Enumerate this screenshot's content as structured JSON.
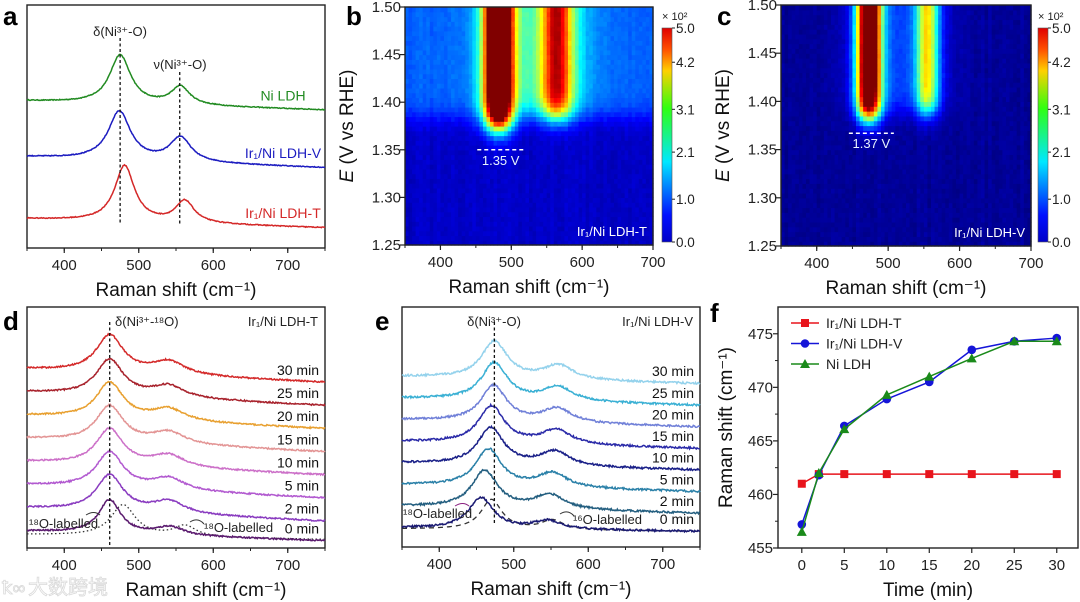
{
  "panel_letters": {
    "a": "a",
    "b": "b",
    "c": "c",
    "d": "d",
    "e": "e",
    "f": "f"
  },
  "watermark": "大数跨境",
  "chart_data": [
    {
      "id": "a",
      "type": "line",
      "xlabel": "Raman shift (cm⁻¹)",
      "ylabel": "",
      "xlim": [
        350,
        750
      ],
      "ylim": [
        0,
        10
      ],
      "xticks": [
        400,
        500,
        600,
        700
      ],
      "annotations": {
        "delta": "δ(Ni³⁺-O)",
        "nu": "ν(Ni³⁺-O)"
      },
      "marker_lines": [
        475,
        555
      ],
      "series": [
        {
          "name": "Ni LDH",
          "color": "#228b22",
          "offset": 6.05,
          "tilt": -0.37,
          "peaks": [
            [
              475,
              2.0,
              17
            ],
            [
              556,
              0.75,
              15
            ]
          ]
        },
        {
          "name": "Ir₁/Ni LDH-V",
          "color": "#1c1cc0",
          "offset": 3.75,
          "tilt": -0.45,
          "peaks": [
            [
              474,
              2.0,
              18
            ],
            [
              556,
              1.0,
              17
            ]
          ]
        },
        {
          "name": "Ir₁/Ni LDH-T",
          "color": "#d42828",
          "offset": 1.2,
          "tilt": -0.37,
          "peaks": [
            [
              481,
              2.3,
              16
            ],
            [
              562,
              0.9,
              15
            ]
          ]
        }
      ]
    },
    {
      "id": "b",
      "type": "heatmap",
      "xlabel": "Raman shift (cm⁻¹)",
      "ylabel_var": "E",
      "ylabel_unit": " (V vs RHE)",
      "xlim": [
        350,
        700
      ],
      "ylim": [
        1.25,
        1.5
      ],
      "xticks": [
        400,
        500,
        600,
        700
      ],
      "yticks": [
        "1.25",
        "1.30",
        "1.35",
        "1.40",
        "1.45",
        "1.50"
      ],
      "colorbar": {
        "multiplier": "× 10²",
        "range": [
          0,
          5
        ],
        "ticks": [
          "0.0",
          "1.0",
          "2.1",
          "3.1",
          "4.2",
          "5.0"
        ],
        "colormap": "jet"
      },
      "sample": "Ir₁/Ni LDH-T",
      "onset": {
        "label": "1.35 V",
        "E": 1.35,
        "x_from": 452,
        "x_to": 518
      },
      "model": {
        "background": [
          0.35,
          0.75,
          1.385
        ],
        "peaks": [
          [
            482,
            20,
            6.0,
            1.375
          ],
          [
            565,
            22,
            2.9,
            1.385
          ],
          [
            535,
            70,
            1.0,
            1.39
          ]
        ]
      }
    },
    {
      "id": "c",
      "type": "heatmap",
      "xlabel": "Raman shift (cm⁻¹)",
      "ylabel_var": "E",
      "ylabel_unit": " (V vs RHE)",
      "xlim": [
        350,
        700
      ],
      "ylim": [
        1.25,
        1.5
      ],
      "xticks": [
        400,
        500,
        600,
        700
      ],
      "yticks": [
        "1.25",
        "1.30",
        "1.35",
        "1.40",
        "1.45",
        "1.50"
      ],
      "colorbar": {
        "multiplier": "× 10²",
        "range": [
          0,
          5
        ],
        "ticks": [
          "0.0",
          "1.0",
          "2.1",
          "3.1",
          "4.2",
          "5.0"
        ],
        "colormap": "jet"
      },
      "sample": "Ir₁/Ni LDH-V",
      "onset": {
        "label": "1.37 V",
        "E": 1.367,
        "x_from": 445,
        "x_to": 508
      },
      "model": {
        "background": [
          0.12,
          0.0,
          1.4
        ],
        "peaks": [
          [
            473,
            17,
            6.0,
            1.385
          ],
          [
            555,
            16,
            2.7,
            1.39
          ],
          [
            515,
            60,
            0.8,
            1.39
          ]
        ]
      }
    },
    {
      "id": "d",
      "type": "line",
      "xlabel": "Raman shift (cm⁻¹)",
      "xlim": [
        350,
        750
      ],
      "ylim": [
        0,
        10
      ],
      "xticks": [
        400,
        500,
        600,
        700
      ],
      "title_annotation": "δ(Ni³⁺-¹⁸O)",
      "sample": "Ir₁/Ni LDH-T",
      "marker_lines": [
        461
      ],
      "ref_labels": [
        "¹⁸O-labelled",
        "¹⁸O-labelled"
      ],
      "reference": {
        "offset": 0.55,
        "tilt": -0.2,
        "peaks": [
          [
            479,
            1.3,
            20
          ],
          [
            562,
            0.45,
            18
          ]
        ],
        "dash": "dotted"
      },
      "series": [
        {
          "name": "0 min",
          "color": "#5a1a6e",
          "offset": 0.7,
          "tilt": -0.4,
          "peaks": [
            [
              461,
              1.4,
              18
            ],
            [
              542,
              0.35,
              22
            ]
          ]
        },
        {
          "name": "2 min",
          "color": "#8a3cc0",
          "offset": 1.66,
          "tilt": -0.55,
          "peaks": [
            [
              461,
              1.5,
              22
            ],
            [
              540,
              0.5,
              26
            ]
          ]
        },
        {
          "name": "5 min",
          "color": "#b25ad0",
          "offset": 2.62,
          "tilt": -0.55,
          "peaks": [
            [
              461,
              1.5,
              22
            ],
            [
              540,
              0.5,
              26
            ]
          ]
        },
        {
          "name": "10 min",
          "color": "#cc70c8",
          "offset": 3.58,
          "tilt": -0.55,
          "peaks": [
            [
              461,
              1.5,
              22
            ],
            [
              540,
              0.5,
              26
            ]
          ]
        },
        {
          "name": "15 min",
          "color": "#e39595",
          "offset": 4.54,
          "tilt": -0.55,
          "peaks": [
            [
              461,
              1.5,
              22
            ],
            [
              540,
              0.5,
              26
            ]
          ]
        },
        {
          "name": "20 min",
          "color": "#e8a030",
          "offset": 5.5,
          "tilt": -0.55,
          "peaks": [
            [
              461,
              1.5,
              22
            ],
            [
              540,
              0.5,
              26
            ]
          ]
        },
        {
          "name": "25 min",
          "color": "#a8222c",
          "offset": 6.46,
          "tilt": -0.55,
          "peaks": [
            [
              461,
              1.5,
              22
            ],
            [
              540,
              0.5,
              26
            ]
          ]
        },
        {
          "name": "30 min",
          "color": "#d42a2a",
          "offset": 7.42,
          "tilt": -0.55,
          "peaks": [
            [
              461,
              1.55,
              22
            ],
            [
              540,
              0.55,
              26
            ]
          ]
        }
      ]
    },
    {
      "id": "e",
      "type": "line",
      "xlabel": "Raman shift (cm⁻¹)",
      "xlim": [
        350,
        750
      ],
      "ylim": [
        0,
        10
      ],
      "xticks": [
        400,
        500,
        600,
        700
      ],
      "title_annotation": "δ(Ni³⁺-O)",
      "sample": "Ir₁/Ni LDH-V",
      "marker_lines": [
        474
      ],
      "ref_labels": [
        "¹⁸O-labelled",
        "¹⁶O-labelled"
      ],
      "reference": {
        "offset": 0.75,
        "tilt": -0.1,
        "peaks": [
          [
            470,
            1.25,
            17
          ],
          [
            552,
            0.4,
            18
          ]
        ],
        "dash": "dashed"
      },
      "series": [
        {
          "name": "0 min",
          "color": "#1a1a72",
          "offset": 0.8,
          "tilt": -0.15,
          "peaks": [
            [
              456,
              1.3,
              20
            ],
            [
              545,
              0.35,
              22
            ]
          ]
        },
        {
          "name": "2 min",
          "color": "#245f80",
          "offset": 1.7,
          "tilt": -0.3,
          "peaks": [
            [
              461,
              1.55,
              21
            ],
            [
              548,
              0.6,
              24
            ]
          ]
        },
        {
          "name": "5 min",
          "color": "#2a80a8",
          "offset": 2.6,
          "tilt": -0.3,
          "peaks": [
            [
              466,
              1.55,
              21
            ],
            [
              552,
              0.6,
              24
            ]
          ]
        },
        {
          "name": "10 min",
          "color": "#1a2088",
          "offset": 3.5,
          "tilt": -0.3,
          "peaks": [
            [
              469,
              1.55,
              21
            ],
            [
              555,
              0.6,
              24
            ]
          ]
        },
        {
          "name": "15 min",
          "color": "#2a2aa8",
          "offset": 4.4,
          "tilt": -0.3,
          "peaks": [
            [
              470,
              1.55,
              21
            ],
            [
              557,
              0.6,
              24
            ]
          ]
        },
        {
          "name": "20 min",
          "color": "#7080d8",
          "offset": 5.3,
          "tilt": -0.3,
          "peaks": [
            [
              473,
              1.5,
              21
            ],
            [
              558,
              0.6,
              24
            ]
          ]
        },
        {
          "name": "25 min",
          "color": "#3ab0d4",
          "offset": 6.2,
          "tilt": -0.3,
          "peaks": [
            [
              474,
              1.55,
              21
            ],
            [
              559,
              0.6,
              24
            ]
          ]
        },
        {
          "name": "30 min",
          "color": "#94d2ec",
          "offset": 7.1,
          "tilt": -0.3,
          "peaks": [
            [
              474,
              1.55,
              21
            ],
            [
              560,
              0.6,
              24
            ]
          ]
        }
      ]
    },
    {
      "id": "f",
      "type": "line",
      "xlabel": "Time (min)",
      "ylabel": "Raman shift (cm⁻¹)",
      "xlim": [
        -2.8,
        32.5
      ],
      "ylim": [
        455,
        477.5
      ],
      "xticks": [
        0,
        5,
        10,
        15,
        20,
        25,
        30
      ],
      "yticks": [
        455,
        460,
        465,
        470,
        475
      ],
      "legend": "top-left",
      "x": [
        0,
        2,
        5,
        10,
        15,
        20,
        25,
        30
      ],
      "series": [
        {
          "name": "Ir₁/Ni LDH-T",
          "color": "#e8141c",
          "marker": "square",
          "values": [
            461.0,
            461.9,
            461.9,
            461.9,
            461.9,
            461.9,
            461.9,
            461.9
          ]
        },
        {
          "name": "Ir₁/Ni LDH-V",
          "color": "#1515d8",
          "marker": "circle",
          "values": [
            457.2,
            461.8,
            466.4,
            468.9,
            470.5,
            473.5,
            474.3,
            474.6
          ]
        },
        {
          "name": "Ni LDH",
          "color": "#1a8a1a",
          "marker": "triangle",
          "values": [
            456.5,
            462.0,
            466.1,
            469.3,
            471.0,
            472.7,
            474.3,
            474.3
          ]
        }
      ]
    }
  ]
}
